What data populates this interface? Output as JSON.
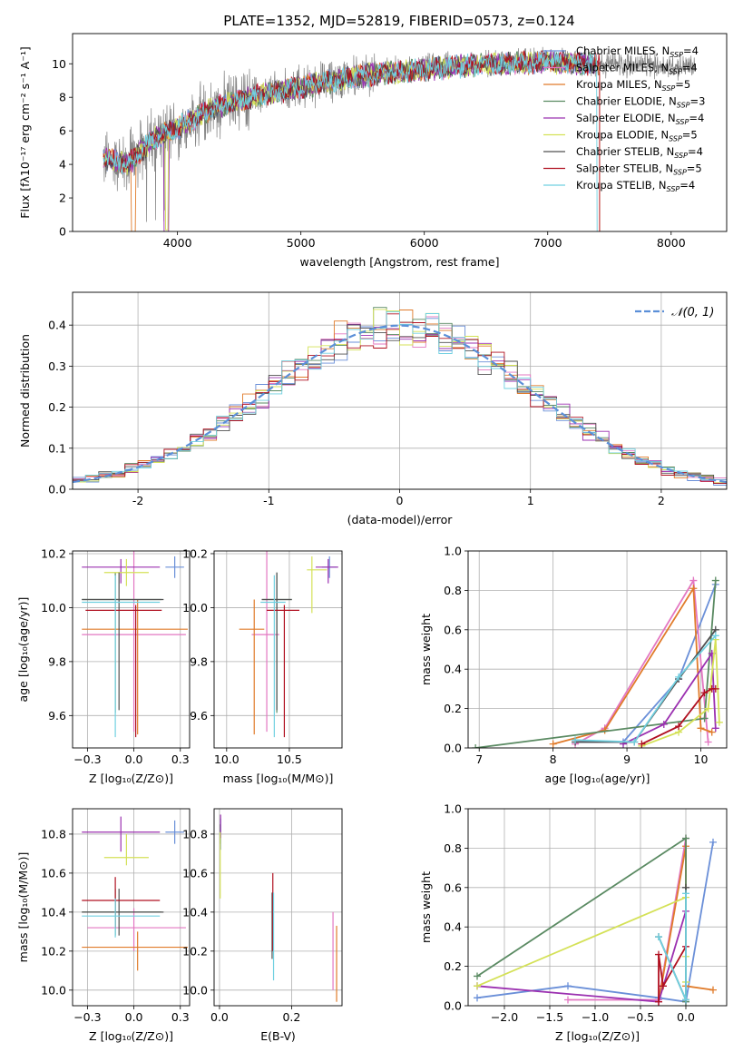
{
  "figure": {
    "title": "PLATE=1352, MJD=52819, FIBERID=0573, z=0.124"
  },
  "legend": [
    {
      "label": "Chabrier MILES, N",
      "sub": "SSP",
      "suffix": "=4",
      "color": "#6a8fd8"
    },
    {
      "label": "Salpeter MILES, N",
      "sub": "SSP",
      "suffix": "=4",
      "color": "#e377c2"
    },
    {
      "label": "Kroupa MILES, N",
      "sub": "SSP",
      "suffix": "=5",
      "color": "#e07b2a"
    },
    {
      "label": "Chabrier ELODIE, N",
      "sub": "SSP",
      "suffix": "=3",
      "color": "#5a8a62"
    },
    {
      "label": "Salpeter ELODIE, N",
      "sub": "SSP",
      "suffix": "=4",
      "color": "#9b30b0"
    },
    {
      "label": "Kroupa ELODIE, N",
      "sub": "SSP",
      "suffix": "=5",
      "color": "#d4e157"
    },
    {
      "label": "Chabrier STELIB, N",
      "sub": "SSP",
      "suffix": "=4",
      "color": "#505050"
    },
    {
      "label": "Salpeter STELIB, N",
      "sub": "SSP",
      "suffix": "=5",
      "color": "#b01020"
    },
    {
      "label": "Kroupa STELIB, N",
      "sub": "SSP",
      "suffix": "=4",
      "color": "#70d0e0"
    }
  ],
  "chart_data": [
    {
      "id": "spectrum",
      "type": "line",
      "xlabel": "wavelength [Angstrom, rest frame]",
      "ylabel": "Flux [fλ10⁻¹⁷ erg cm⁻² s⁻¹ A⁻¹]",
      "xlim": [
        3150,
        8450
      ],
      "ylim": [
        0,
        11.8
      ],
      "xticks": [
        4000,
        5000,
        6000,
        7000,
        8000
      ],
      "yticks": [
        0,
        2,
        4,
        6,
        8,
        10
      ],
      "data_color": "#808080",
      "data_anchors": {
        "x": [
          3400,
          3600,
          3800,
          3950,
          4100,
          4300,
          4600,
          5000,
          5400,
          5800,
          6200,
          6600,
          7000,
          7400,
          7900,
          8200
        ],
        "y": [
          4.3,
          4.1,
          5.6,
          6.0,
          6.5,
          7.4,
          8.0,
          8.6,
          9.2,
          9.6,
          9.9,
          10.1,
          10.2,
          10.0,
          9.9,
          9.8
        ]
      },
      "model_anchors": {
        "x": [
          3400,
          3600,
          3800,
          3950,
          4100,
          4300,
          4600,
          5000,
          5400,
          5800,
          6200,
          6600,
          7000,
          7400
        ],
        "y": [
          4.4,
          4.0,
          5.5,
          6.0,
          6.6,
          7.4,
          8.0,
          8.6,
          9.2,
          9.5,
          9.8,
          10.0,
          10.1,
          10.0
        ]
      }
    },
    {
      "id": "residual-hist",
      "type": "bar",
      "xlabel": "(data-model)/error",
      "ylabel": "Normed distribution",
      "xlim": [
        -2.5,
        2.5
      ],
      "ylim": [
        0,
        0.48
      ],
      "xticks": [
        -2,
        -1,
        0,
        1,
        2
      ],
      "yticks": [
        0.0,
        0.1,
        0.2,
        0.3,
        0.4
      ],
      "legend": "$\\mathcal{N}(0,1)$",
      "legend_label": "𝒩(0, 1)",
      "gaussian": {
        "mean": 0,
        "sigma": 1,
        "color": "#5b8fd8"
      },
      "bin_width": 0.1
    },
    {
      "id": "age-vs-Z",
      "type": "scatter",
      "xlabel": "Z [log₁₀(Z/Z⊙)]",
      "ylabel": "age  [log₁₀(age/yr)]",
      "xlim": [
        -0.33,
        0.3
      ],
      "ylim": [
        9.48,
        10.21
      ],
      "xticks": [
        -0.25,
        0.0,
        0.25
      ],
      "yticks": [
        9.6,
        9.8,
        10.0,
        10.2
      ],
      "points": [
        {
          "x": 0.22,
          "y": 10.15,
          "xerr": [
            0.05,
            0.05
          ],
          "yerr": [
            0.04,
            0.04
          ],
          "model": 0
        },
        {
          "x": 0.0,
          "y": 9.9,
          "xerr": [
            0.28,
            0.28
          ],
          "yerr": [
            0.36,
            0.36
          ],
          "model": 1
        },
        {
          "x": 0.02,
          "y": 9.92,
          "xerr": [
            0.3,
            0.27
          ],
          "yerr": [
            0.39,
            0.11
          ],
          "model": 2
        },
        {
          "x": -0.1,
          "y": 10.03,
          "xerr": [
            0.18,
            0.25
          ],
          "yerr": [
            0.42,
            0.1
          ],
          "model": 3
        },
        {
          "x": -0.07,
          "y": 10.15,
          "xerr": [
            0.21,
            0.21
          ],
          "yerr": [
            0.06,
            0.03
          ],
          "model": 4
        },
        {
          "x": -0.04,
          "y": 10.13,
          "xerr": [
            0.12,
            0.12
          ],
          "yerr": [
            0.05,
            0.05
          ],
          "model": 5
        },
        {
          "x": -0.08,
          "y": 10.03,
          "xerr": [
            0.2,
            0.24
          ],
          "yerr": [
            0.41,
            0.1
          ],
          "model": 6
        },
        {
          "x": 0.01,
          "y": 9.99,
          "xerr": [
            0.27,
            0.14
          ],
          "yerr": [
            0.47,
            0.02
          ],
          "model": 7
        },
        {
          "x": -0.1,
          "y": 10.02,
          "xerr": [
            0.18,
            0.24
          ],
          "yerr": [
            0.5,
            0.1
          ],
          "model": 8
        }
      ]
    },
    {
      "id": "age-vs-mass",
      "type": "scatter",
      "xlabel": "mass [log₁₀(M/M⊙)]",
      "ylabel": "",
      "xlim": [
        9.9,
        10.92
      ],
      "ylim": [
        9.48,
        10.21
      ],
      "xticks": [
        10.0,
        10.5
      ],
      "yticks": [
        9.6,
        9.8,
        10.0,
        10.2
      ],
      "points": [
        {
          "x": 10.82,
          "y": 10.15,
          "xerr": [
            0.06,
            0.06
          ],
          "yerr": [
            0.04,
            0.04
          ],
          "model": 0
        },
        {
          "x": 10.32,
          "y": 9.9,
          "xerr": [
            0.12,
            0.1
          ],
          "yerr": [
            0.36,
            0.36
          ],
          "model": 1
        },
        {
          "x": 10.22,
          "y": 9.92,
          "xerr": [
            0.12,
            0.08
          ],
          "yerr": [
            0.39,
            0.11
          ],
          "model": 2
        },
        {
          "x": 10.4,
          "y": 10.03,
          "xerr": [
            0.12,
            0.12
          ],
          "yerr": [
            0.42,
            0.1
          ],
          "model": 3
        },
        {
          "x": 10.81,
          "y": 10.15,
          "xerr": [
            0.1,
            0.08
          ],
          "yerr": [
            0.06,
            0.03
          ],
          "model": 4
        },
        {
          "x": 10.68,
          "y": 10.14,
          "xerr": [
            0.04,
            0.12
          ],
          "yerr": [
            0.16,
            0.05
          ],
          "model": 5
        },
        {
          "x": 10.4,
          "y": 10.03,
          "xerr": [
            0.12,
            0.12
          ],
          "yerr": [
            0.41,
            0.1
          ],
          "model": 6
        },
        {
          "x": 10.46,
          "y": 9.99,
          "xerr": [
            0.14,
            0.12
          ],
          "yerr": [
            0.47,
            0.02
          ],
          "model": 7
        },
        {
          "x": 10.38,
          "y": 10.02,
          "xerr": [
            0.11,
            0.09
          ],
          "yerr": [
            0.5,
            0.1
          ],
          "model": 8
        }
      ]
    },
    {
      "id": "weight-vs-age",
      "type": "line",
      "xlabel": "age  [log₁₀(age/yr)]",
      "ylabel": "mass weight",
      "xlim": [
        6.85,
        10.35
      ],
      "ylim": [
        0,
        1.0
      ],
      "xticks": [
        7,
        8,
        9,
        10
      ],
      "yticks": [
        0.0,
        0.2,
        0.4,
        0.6,
        0.8,
        1.0
      ],
      "series": [
        {
          "model": 0,
          "x": [
            8.3,
            8.95,
            9.7,
            10.2
          ],
          "y": [
            0.03,
            0.03,
            0.35,
            0.83
          ]
        },
        {
          "model": 1,
          "x": [
            8.3,
            8.7,
            9.9,
            10.1
          ],
          "y": [
            0.02,
            0.1,
            0.85,
            0.03
          ]
        },
        {
          "model": 2,
          "x": [
            8.0,
            8.7,
            9.9,
            10.0,
            10.15
          ],
          "y": [
            0.02,
            0.09,
            0.81,
            0.1,
            0.08
          ]
        },
        {
          "model": 3,
          "x": [
            6.95,
            10.05,
            10.2
          ],
          "y": [
            0.0,
            0.15,
            0.85
          ]
        },
        {
          "model": 4,
          "x": [
            8.95,
            9.5,
            10.15,
            10.2
          ],
          "y": [
            0.02,
            0.12,
            0.48,
            0.1
          ]
        },
        {
          "model": 5,
          "x": [
            9.2,
            9.7,
            10.1,
            10.2,
            10.25
          ],
          "y": [
            0.01,
            0.08,
            0.2,
            0.55,
            0.13
          ]
        },
        {
          "model": 6,
          "x": [
            8.3,
            9.1,
            9.7,
            10.2
          ],
          "y": [
            0.03,
            0.03,
            0.35,
            0.6
          ]
        },
        {
          "model": 7,
          "x": [
            9.2,
            9.7,
            10.05,
            10.15,
            10.2
          ],
          "y": [
            0.02,
            0.11,
            0.28,
            0.3,
            0.3
          ]
        },
        {
          "model": 8,
          "x": [
            8.3,
            9.1,
            9.7,
            10.2
          ],
          "y": [
            0.04,
            0.03,
            0.36,
            0.57
          ]
        }
      ]
    },
    {
      "id": "mass-vs-Z",
      "type": "scatter",
      "xlabel": "Z [log₁₀(Z/Z⊙)]",
      "ylabel": "mass [log₁₀(M/M⊙)]",
      "xlim": [
        -0.33,
        0.3
      ],
      "ylim": [
        9.92,
        10.93
      ],
      "xticks": [
        -0.25,
        0.0,
        0.25
      ],
      "yticks": [
        10.0,
        10.2,
        10.4,
        10.6,
        10.8
      ],
      "points": [
        {
          "x": 0.22,
          "y": 10.81,
          "xerr": [
            0.05,
            0.05
          ],
          "yerr": [
            0.06,
            0.06
          ],
          "model": 0
        },
        {
          "x": 0.0,
          "y": 10.32,
          "xerr": [
            0.25,
            0.28
          ],
          "yerr": [
            0.12,
            0.1
          ],
          "model": 1
        },
        {
          "x": 0.02,
          "y": 10.22,
          "xerr": [
            0.3,
            0.27
          ],
          "yerr": [
            0.12,
            0.08
          ],
          "model": 2
        },
        {
          "x": -0.1,
          "y": 10.4,
          "xerr": [
            0.18,
            0.25
          ],
          "yerr": [
            0.12,
            0.12
          ],
          "model": 3
        },
        {
          "x": -0.07,
          "y": 10.81,
          "xerr": [
            0.21,
            0.21
          ],
          "yerr": [
            0.1,
            0.08
          ],
          "model": 4
        },
        {
          "x": -0.04,
          "y": 10.68,
          "xerr": [
            0.12,
            0.12
          ],
          "yerr": [
            0.04,
            0.12
          ],
          "model": 5
        },
        {
          "x": -0.08,
          "y": 10.4,
          "xerr": [
            0.2,
            0.24
          ],
          "yerr": [
            0.12,
            0.12
          ],
          "model": 6
        },
        {
          "x": -0.1,
          "y": 10.46,
          "xerr": [
            0.18,
            0.24
          ],
          "yerr": [
            0.14,
            0.12
          ],
          "model": 7
        },
        {
          "x": -0.1,
          "y": 10.38,
          "xerr": [
            0.18,
            0.24
          ],
          "yerr": [
            0.11,
            0.09
          ],
          "model": 8
        }
      ]
    },
    {
      "id": "mass-vs-ebv",
      "type": "scatter",
      "xlabel": "E(B-V)",
      "ylabel": "",
      "xlim": [
        -0.015,
        0.34
      ],
      "ylim": [
        9.92,
        10.93
      ],
      "xticks": [
        0.0,
        0.2
      ],
      "yticks": [
        10.0,
        10.2,
        10.4,
        10.6,
        10.8
      ],
      "points": [
        {
          "x": 0.003,
          "y": 10.8,
          "xerr": [
            0.0,
            0.0
          ],
          "yerr": [
            0.08,
            0.08
          ],
          "model": 0
        },
        {
          "x": 0.315,
          "y": 10.2,
          "xerr": [
            0.0,
            0.0
          ],
          "yerr": [
            0.2,
            0.2
          ],
          "model": 1
        },
        {
          "x": 0.325,
          "y": 10.14,
          "xerr": [
            0.0,
            0.0
          ],
          "yerr": [
            0.2,
            0.19
          ],
          "model": 2
        },
        {
          "x": 0.002,
          "y": 10.8,
          "xerr": [
            0.0,
            0.0
          ],
          "yerr": [
            0.05,
            0.05
          ],
          "model": 3
        },
        {
          "x": 0.003,
          "y": 10.82,
          "xerr": [
            0.0,
            0.0
          ],
          "yerr": [
            0.04,
            0.08
          ],
          "model": 4
        },
        {
          "x": 0.002,
          "y": 10.68,
          "xerr": [
            0.0,
            0.0
          ],
          "yerr": [
            0.21,
            0.13
          ],
          "model": 5
        },
        {
          "x": 0.146,
          "y": 10.33,
          "xerr": [
            0.0,
            0.0
          ],
          "yerr": [
            0.17,
            0.17
          ],
          "model": 6
        },
        {
          "x": 0.148,
          "y": 10.4,
          "xerr": [
            0.0,
            0.0
          ],
          "yerr": [
            0.2,
            0.2
          ],
          "model": 7
        },
        {
          "x": 0.15,
          "y": 10.25,
          "xerr": [
            0.0,
            0.0
          ],
          "yerr": [
            0.2,
            0.25
          ],
          "model": 8
        }
      ]
    },
    {
      "id": "weight-vs-Z",
      "type": "line",
      "xlabel": "Z [log₁₀(Z/Z⊙)]",
      "ylabel": "mass weight",
      "xlim": [
        -2.4,
        0.45
      ],
      "ylim": [
        0,
        1.0
      ],
      "xticks": [
        -2.0,
        -1.5,
        -1.0,
        -0.5,
        0.0
      ],
      "yticks": [
        0.0,
        0.2,
        0.4,
        0.6,
        0.8,
        1.0
      ],
      "series": [
        {
          "model": 0,
          "x": [
            -2.3,
            -1.3,
            -0.3,
            0.0,
            0.3
          ],
          "y": [
            0.04,
            0.1,
            0.04,
            0.02,
            0.83
          ]
        },
        {
          "model": 1,
          "x": [
            -1.3,
            -0.3,
            0.0,
            0.0
          ],
          "y": [
            0.03,
            0.03,
            0.85,
            0.02
          ]
        },
        {
          "model": 2,
          "x": [
            -0.3,
            0.0,
            0.0,
            0.3
          ],
          "y": [
            0.02,
            0.81,
            0.1,
            0.08
          ]
        },
        {
          "model": 3,
          "x": [
            -2.3,
            0.0,
            0.0
          ],
          "y": [
            0.15,
            0.85,
            0.02
          ]
        },
        {
          "model": 4,
          "x": [
            -2.3,
            -0.3,
            0.0,
            0.0
          ],
          "y": [
            0.1,
            0.02,
            0.48,
            0.3
          ]
        },
        {
          "model": 5,
          "x": [
            -2.3,
            0.0,
            0.0,
            0.0
          ],
          "y": [
            0.1,
            0.55,
            0.25,
            0.12
          ]
        },
        {
          "model": 6,
          "x": [
            -0.3,
            0.0,
            0.0,
            0.0
          ],
          "y": [
            0.35,
            0.03,
            0.6,
            0.03
          ]
        },
        {
          "model": 7,
          "x": [
            -0.3,
            -0.3,
            -0.25,
            0.0
          ],
          "y": [
            0.02,
            0.26,
            0.1,
            0.3
          ]
        },
        {
          "model": 8,
          "x": [
            -0.3,
            0.0,
            0.0
          ],
          "y": [
            0.35,
            0.03,
            0.57
          ]
        }
      ]
    }
  ]
}
